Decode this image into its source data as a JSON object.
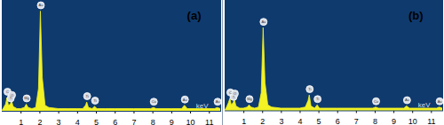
{
  "chart_data": [
    {
      "type": "area",
      "title": "(a)",
      "xlabel": "keV",
      "color": "#f2f224",
      "x": [
        0,
        0.1,
        0.2,
        0.28,
        0.35,
        0.45,
        0.52,
        0.6,
        0.7,
        0.8,
        1.0,
        1.2,
        1.3,
        1.4,
        1.6,
        1.8,
        1.95,
        2.05,
        2.15,
        2.3,
        2.5,
        3.0,
        3.5,
        4.0,
        4.3,
        4.45,
        4.51,
        4.6,
        4.8,
        4.93,
        5.05,
        5.5,
        6,
        7,
        7.9,
        8.05,
        8.2,
        9,
        9.55,
        9.7,
        9.85,
        10.5,
        11.3,
        11.44,
        11.6
      ],
      "values": [
        0,
        3,
        6,
        12,
        5,
        6,
        9,
        4,
        3,
        2,
        2,
        3,
        6,
        3,
        2,
        3,
        20,
        90,
        30,
        5,
        3,
        2,
        2,
        2,
        2,
        5,
        8,
        3,
        2,
        4,
        2,
        2,
        2,
        2,
        2,
        3,
        2,
        2,
        2,
        5,
        2,
        2,
        2,
        3,
        2
      ],
      "xlim": [
        0,
        11.6
      ],
      "xticks": [
        1,
        2,
        3,
        4,
        5,
        6,
        7,
        8,
        9,
        10,
        11
      ],
      "ylim": [
        0,
        100
      ],
      "tick_labels": "x",
      "annotations": [
        {
          "x": 0.28,
          "label": "C"
        },
        {
          "x": 0.45,
          "label": "Ti"
        },
        {
          "x": 0.52,
          "label": "O"
        },
        {
          "x": 1.3,
          "label": "Mg"
        },
        {
          "x": 2.05,
          "label": "Au"
        },
        {
          "x": 4.51,
          "label": "Ti"
        },
        {
          "x": 4.93,
          "label": "Ti"
        },
        {
          "x": 8.05,
          "label": "Cu"
        },
        {
          "x": 9.7,
          "label": "Au"
        },
        {
          "x": 11.44,
          "label": "Au"
        }
      ]
    },
    {
      "type": "area",
      "title": "(b)",
      "xlabel": "keV",
      "color": "#f2f224",
      "x": [
        0,
        0.1,
        0.2,
        0.28,
        0.35,
        0.45,
        0.52,
        0.6,
        0.7,
        0.8,
        1.0,
        1.2,
        1.3,
        1.4,
        1.6,
        1.8,
        1.95,
        2.05,
        2.15,
        2.3,
        2.5,
        3.0,
        3.5,
        4.0,
        4.3,
        4.45,
        4.51,
        4.6,
        4.8,
        4.93,
        5.05,
        5.5,
        6,
        7,
        7.9,
        8.05,
        8.2,
        9,
        9.55,
        9.7,
        9.85,
        10.5,
        11.3,
        11.44,
        11.6
      ],
      "values": [
        0,
        3,
        7,
        11,
        5,
        7,
        10,
        4,
        3,
        2,
        2,
        3,
        5,
        3,
        2,
        3,
        16,
        75,
        25,
        5,
        3,
        2,
        2,
        2,
        3,
        9,
        14,
        4,
        2,
        5,
        2,
        2,
        2,
        2,
        2,
        3,
        2,
        2,
        2,
        4,
        2,
        2,
        2,
        3,
        2
      ],
      "xlim": [
        0,
        11.6
      ],
      "xticks": [
        1,
        2,
        3,
        4,
        5,
        6,
        7,
        8,
        9,
        10,
        11
      ],
      "ylim": [
        0,
        100
      ],
      "tick_labels": "x",
      "annotations": [
        {
          "x": 0.28,
          "label": "C"
        },
        {
          "x": 0.45,
          "label": "Ti"
        },
        {
          "x": 0.52,
          "label": "O"
        },
        {
          "x": 1.3,
          "label": "Mg"
        },
        {
          "x": 2.05,
          "label": "Au"
        },
        {
          "x": 4.51,
          "label": "Ti"
        },
        {
          "x": 4.93,
          "label": "Ti"
        },
        {
          "x": 8.05,
          "label": "Cu"
        },
        {
          "x": 9.7,
          "label": "Au"
        },
        {
          "x": 11.44,
          "label": "Au"
        }
      ]
    }
  ]
}
